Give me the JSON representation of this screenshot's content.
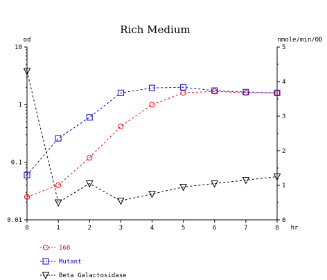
{
  "chart_data": {
    "type": "line",
    "title": "Rich Medium",
    "left_axis": {
      "label": "od",
      "scale": "log",
      "range": [
        0.01,
        10
      ],
      "ticks": [
        "0.01",
        "0.1",
        "1",
        "10"
      ]
    },
    "right_axis": {
      "label": "nmole/min/OD",
      "scale": "linear",
      "range": [
        0,
        5
      ],
      "ticks": [
        "0",
        "1",
        "2",
        "3",
        "4",
        "5"
      ]
    },
    "x_axis": {
      "label": "hr",
      "range": [
        0,
        8
      ],
      "ticks": [
        "0",
        "1",
        "2",
        "3",
        "4",
        "5",
        "6",
        "7",
        "8"
      ]
    },
    "x": [
      0,
      1,
      2,
      3,
      4,
      5,
      6,
      7,
      8
    ],
    "grid": false,
    "legend_position": "bottom-left",
    "series": [
      {
        "name": "168",
        "axis": "left",
        "marker": "circle",
        "color": "#ff0000",
        "values": [
          0.025,
          0.04,
          0.12,
          0.42,
          1.0,
          1.6,
          1.7,
          1.6,
          1.6
        ]
      },
      {
        "name": "Mutant",
        "axis": "left",
        "marker": "square",
        "color": "#0000cc",
        "values": [
          0.06,
          0.26,
          0.6,
          1.6,
          1.95,
          2.0,
          1.75,
          1.65,
          1.6
        ]
      },
      {
        "name": "Beta Galactosidase",
        "axis": "right",
        "marker": "triangle-down",
        "color": "#000000",
        "values": [
          4.3,
          0.5,
          1.05,
          0.55,
          0.75,
          0.95,
          1.05,
          1.15,
          1.25
        ]
      }
    ]
  }
}
